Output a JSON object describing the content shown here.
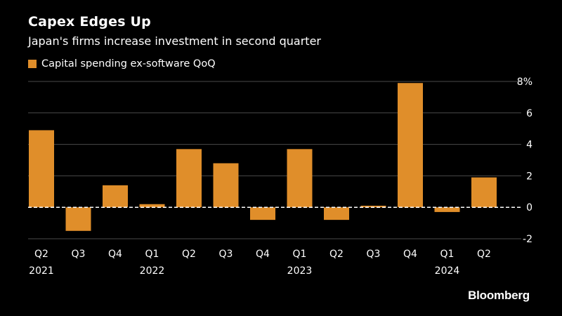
{
  "brand": "Bloomberg",
  "colors": {
    "background": "#000000",
    "bar": "#E08E2A",
    "grid": "#4a4a4a",
    "text": "#ffffff"
  },
  "chart_data": {
    "type": "bar",
    "title": "Capex Edges Up",
    "subtitle": "Japan's firms increase investment in second quarter",
    "legend": "Capital spending ex-software QoQ",
    "legend_position": "top-left",
    "ylim": [
      -2,
      8
    ],
    "yticks": [
      {
        "value": 8,
        "label": "8%"
      },
      {
        "value": 6,
        "label": "6"
      },
      {
        "value": 4,
        "label": "4"
      },
      {
        "value": 2,
        "label": "2"
      },
      {
        "value": 0,
        "label": "0"
      },
      {
        "value": -2,
        "label": "-2"
      }
    ],
    "grid": true,
    "categories": [
      "Q2",
      "Q3",
      "Q4",
      "Q1",
      "Q2",
      "Q3",
      "Q4",
      "Q1",
      "Q2",
      "Q3",
      "Q4",
      "Q1",
      "Q2"
    ],
    "years": [
      "2021",
      "",
      "",
      "2022",
      "",
      "",
      "",
      "2023",
      "",
      "",
      "",
      "2024",
      ""
    ],
    "series": [
      {
        "name": "Capital spending ex-software QoQ",
        "values": [
          4.9,
          -1.5,
          1.4,
          0.2,
          3.7,
          2.8,
          -0.8,
          3.7,
          -0.8,
          0.1,
          7.9,
          -0.3,
          1.9
        ]
      }
    ]
  }
}
